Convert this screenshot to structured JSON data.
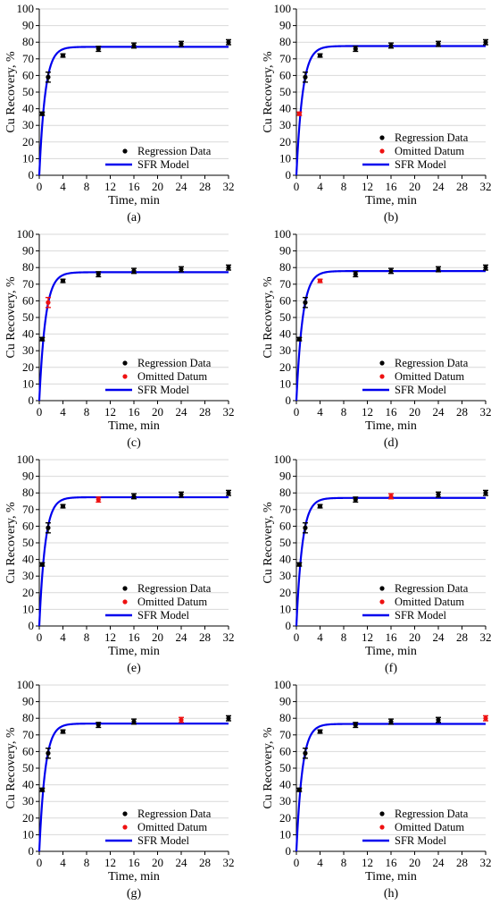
{
  "colors": {
    "model_line": "#0000ee",
    "regression_marker": "#000000",
    "omitted_marker": "#ee1111",
    "axis": "#000000",
    "grid": "#d9d9d9"
  },
  "axes": {
    "xlabel": "Time, min",
    "ylabel": "Cu Recovery, %",
    "xlim": [
      0,
      32
    ],
    "ylim": [
      0,
      100
    ],
    "xticks": [
      "0",
      "4",
      "8",
      "12",
      "16",
      "20",
      "24",
      "28",
      "32"
    ],
    "yticks": [
      "0",
      "10",
      "20",
      "30",
      "40",
      "50",
      "60",
      "70",
      "80",
      "90",
      "100"
    ]
  },
  "legend_text": {
    "regression": "Regression Data",
    "omitted": "Omitted Datum",
    "model": "SFR Model"
  },
  "chart_data": [
    {
      "panel_label": "(a)",
      "type": "scatter",
      "grid": "horizontal",
      "legend_position": "lower-right",
      "regression": {
        "x": [
          0.5,
          1.5,
          4,
          10,
          16,
          24,
          32
        ],
        "y": [
          37,
          59,
          72,
          76,
          78,
          79,
          80
        ],
        "err": [
          1,
          3,
          1,
          1.5,
          1.5,
          1.5,
          1.5
        ]
      },
      "omitted": null,
      "model": {
        "rmax": 77.2,
        "k": 1.0
      }
    },
    {
      "panel_label": "(b)",
      "type": "scatter",
      "grid": "horizontal",
      "legend_position": "lower-right",
      "regression": {
        "x": [
          1.5,
          4,
          10,
          16,
          24,
          32
        ],
        "y": [
          59,
          72,
          76,
          78,
          79,
          80
        ],
        "err": [
          3,
          1,
          1.5,
          1.5,
          1.5,
          1.5
        ]
      },
      "omitted": {
        "x": [
          0.5
        ],
        "y": [
          37
        ],
        "err": [
          1
        ]
      },
      "model": {
        "rmax": 77.7,
        "k": 0.95
      }
    },
    {
      "panel_label": "(c)",
      "type": "scatter",
      "grid": "horizontal",
      "legend_position": "lower-right",
      "regression": {
        "x": [
          0.5,
          4,
          10,
          16,
          24,
          32
        ],
        "y": [
          37,
          72,
          76,
          78,
          79,
          80
        ],
        "err": [
          1,
          1,
          1.5,
          1.5,
          1.5,
          1.5
        ]
      },
      "omitted": {
        "x": [
          1.5
        ],
        "y": [
          59
        ],
        "err": [
          3
        ]
      },
      "model": {
        "rmax": 77.2,
        "k": 0.95
      }
    },
    {
      "panel_label": "(d)",
      "type": "scatter",
      "grid": "horizontal",
      "legend_position": "lower-right",
      "regression": {
        "x": [
          0.5,
          1.5,
          10,
          16,
          24,
          32
        ],
        "y": [
          37,
          59,
          76,
          78,
          79,
          80
        ],
        "err": [
          1,
          3,
          1.5,
          1.5,
          1.5,
          1.5
        ]
      },
      "omitted": {
        "x": [
          4
        ],
        "y": [
          72
        ],
        "err": [
          1
        ]
      },
      "model": {
        "rmax": 77.9,
        "k": 0.95
      }
    },
    {
      "panel_label": "(e)",
      "type": "scatter",
      "grid": "horizontal",
      "legend_position": "lower-right",
      "regression": {
        "x": [
          0.5,
          1.5,
          4,
          16,
          24,
          32
        ],
        "y": [
          37,
          59,
          72,
          78,
          79,
          80
        ],
        "err": [
          1,
          3,
          1,
          1.5,
          1.5,
          1.5
        ]
      },
      "omitted": {
        "x": [
          10
        ],
        "y": [
          76
        ],
        "err": [
          1.5
        ]
      },
      "model": {
        "rmax": 77.4,
        "k": 1.0
      }
    },
    {
      "panel_label": "(f)",
      "type": "scatter",
      "grid": "horizontal",
      "legend_position": "lower-right",
      "regression": {
        "x": [
          0.5,
          1.5,
          4,
          10,
          24,
          32
        ],
        "y": [
          37,
          59,
          72,
          76,
          79,
          80
        ],
        "err": [
          1,
          3,
          1,
          1.5,
          1.5,
          1.5
        ]
      },
      "omitted": {
        "x": [
          16
        ],
        "y": [
          78
        ],
        "err": [
          1.5
        ]
      },
      "model": {
        "rmax": 77.0,
        "k": 1.0
      }
    },
    {
      "panel_label": "(g)",
      "type": "scatter",
      "grid": "horizontal",
      "legend_position": "lower-right",
      "regression": {
        "x": [
          0.5,
          1.5,
          4,
          10,
          16,
          32
        ],
        "y": [
          37,
          59,
          72,
          76,
          78,
          80
        ],
        "err": [
          1,
          3,
          1,
          1.5,
          1.5,
          1.5
        ]
      },
      "omitted": {
        "x": [
          24
        ],
        "y": [
          79
        ],
        "err": [
          1.5
        ]
      },
      "model": {
        "rmax": 76.8,
        "k": 1.0
      }
    },
    {
      "panel_label": "(h)",
      "type": "scatter",
      "grid": "horizontal",
      "legend_position": "lower-right",
      "regression": {
        "x": [
          0.5,
          1.5,
          4,
          10,
          16,
          24
        ],
        "y": [
          37,
          59,
          72,
          76,
          78,
          79
        ],
        "err": [
          1,
          3,
          1,
          1.5,
          1.5,
          1.5
        ]
      },
      "omitted": {
        "x": [
          32
        ],
        "y": [
          80
        ],
        "err": [
          1.5
        ]
      },
      "model": {
        "rmax": 76.6,
        "k": 1.0
      }
    }
  ]
}
